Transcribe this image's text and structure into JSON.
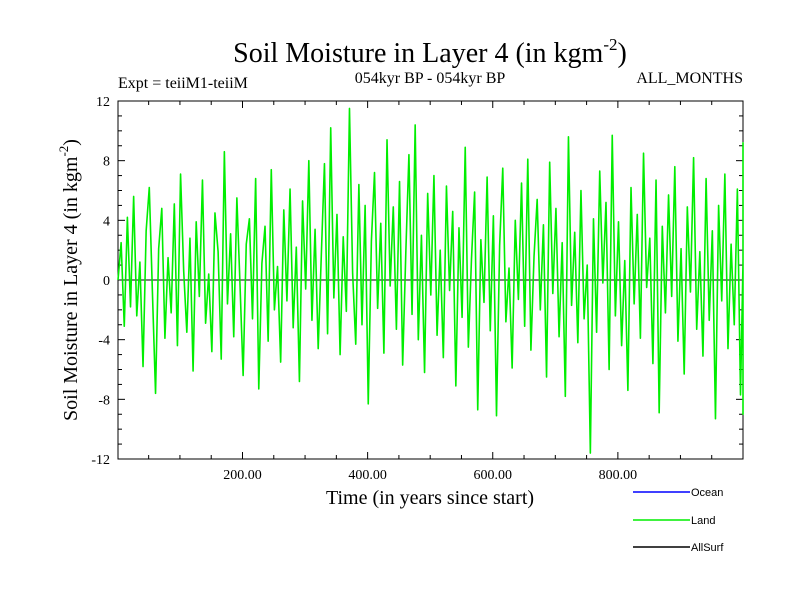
{
  "chart_data": {
    "type": "line",
    "title": "Soil Moisture in Layer 4 (in kgm",
    "title_sup": "-2",
    "title_end": ")",
    "subtitle_left": "Expt = teiiM1-teiiM",
    "subtitle_center": "054kyr BP - 054kyr BP",
    "subtitle_right": "ALL_MONTHS",
    "xlabel": "Time (in years since start)",
    "ylabel": "Soil Moisture in Layer 4 (in kgm",
    "ylabel_sup": "-2",
    "ylabel_end": ")",
    "xlim": [
      1,
      1000
    ],
    "ylim": [
      -12,
      12
    ],
    "x_ticks": [
      200,
      400,
      600,
      800
    ],
    "x_tick_labels": [
      "200.00",
      "400.00",
      "600.00",
      "800.00"
    ],
    "y_ticks": [
      -12,
      -8,
      -4,
      0,
      4,
      8,
      12
    ],
    "y_tick_labels": [
      "-12",
      "-8",
      "-4",
      "0",
      "4",
      "8",
      "12"
    ],
    "legend_position": "bottom-right",
    "colors": {
      "ocean": "#0000ff",
      "land": "#00ee00",
      "allsurf": "#000000"
    },
    "series": [
      {
        "name": "Ocean",
        "color": "#0000ff",
        "values": []
      },
      {
        "name": "Land",
        "color": "#00ee00",
        "x_start": 1,
        "x_step": 5,
        "values": [
          0.0,
          2.5,
          -3.1,
          4.2,
          -1.8,
          5.6,
          -2.4,
          1.2,
          -5.8,
          3.3,
          6.2,
          -0.8,
          -7.6,
          2.1,
          4.8,
          -3.9,
          1.5,
          -2.2,
          5.1,
          -4.4,
          7.1,
          0.6,
          -3.5,
          2.8,
          -6.1,
          3.9,
          -1.1,
          6.7,
          -2.9,
          0.4,
          -4.8,
          4.5,
          1.9,
          -5.3,
          8.6,
          -1.6,
          3.1,
          -3.8,
          5.5,
          -0.3,
          -6.4,
          2.4,
          4.1,
          -2.6,
          6.8,
          -7.3,
          1.1,
          3.6,
          -4.1,
          7.4,
          -2.0,
          0.9,
          -5.5,
          4.7,
          -1.4,
          6.1,
          -3.2,
          2.2,
          -6.8,
          5.3,
          -0.6,
          8.0,
          -2.7,
          3.4,
          -4.6,
          1.7,
          7.8,
          -3.6,
          10.2,
          -1.2,
          4.4,
          -5.0,
          2.9,
          -2.1,
          11.5,
          0.5,
          -4.3,
          6.4,
          -3.0,
          5.0,
          -8.3,
          2.6,
          7.2,
          -1.9,
          3.8,
          -4.9,
          9.4,
          -0.4,
          4.9,
          -3.3,
          6.6,
          -5.7,
          1.8,
          8.4,
          -2.3,
          10.4,
          -4.0,
          3.0,
          -6.2,
          5.8,
          -1.0,
          7.0,
          -3.7,
          2.0,
          -5.2,
          6.3,
          -0.7,
          4.6,
          -7.1,
          3.5,
          -2.5,
          8.9,
          -4.5,
          1.4,
          5.9,
          -8.7,
          2.7,
          -1.5,
          6.9,
          -3.4,
          4.3,
          -9.1,
          2.3,
          7.5,
          -2.8,
          0.8,
          -5.9,
          4.0,
          -1.3,
          6.5,
          -3.1,
          8.1,
          -4.7,
          1.6,
          5.4,
          -2.0,
          3.7,
          -6.5,
          7.9,
          -0.9,
          4.8,
          -3.8,
          2.5,
          -7.8,
          9.6,
          -1.7,
          3.2,
          -4.2,
          6.0,
          -2.6,
          1.0,
          -11.6,
          4.1,
          -3.5,
          7.3,
          -0.2,
          5.2,
          -6.0,
          9.7,
          -2.4,
          3.9,
          -4.4,
          1.3,
          -7.4,
          6.2,
          -1.6,
          4.4,
          -3.9,
          8.5,
          -0.5,
          2.8,
          -5.6,
          6.7,
          -8.9,
          3.6,
          -2.2,
          5.7,
          -1.1,
          7.6,
          -4.1,
          2.1,
          -6.3,
          4.9,
          -0.8,
          8.2,
          -3.3,
          1.9,
          -5.1,
          6.8,
          -2.7,
          3.3,
          -9.3,
          5.0,
          -1.4,
          7.1,
          -4.6,
          2.4,
          -3.0,
          6.1,
          -7.7,
          1.2,
          4.7,
          -2.1,
          8.8,
          -5.4,
          3.0,
          -1.8,
          6.4,
          -3.6,
          2.9,
          -8.1,
          5.6,
          -0.6,
          9.2,
          -4.3,
          3.8,
          -2.5,
          7.0,
          -6.6,
          1.5,
          4.2,
          -3.2,
          8.4,
          -0.9,
          2.6,
          -5.8,
          6.3,
          -1.9,
          4.5,
          -9.0,
          3.4,
          -2.4,
          7.7,
          -4.8,
          1.8,
          5.3,
          -7.2,
          2.0,
          -1.2,
          6.6,
          -3.7,
          4.0,
          -8.6,
          3.1,
          -0.7,
          7.4,
          -2.9,
          5.5,
          -4.0,
          1.1,
          -6.9,
          6.0,
          -2.3,
          3.5,
          -1.5,
          8.3,
          -5.3,
          2.7,
          -3.4,
          5.9,
          -0.4,
          4.6,
          -7.5,
          7.8,
          -1.6,
          3.2,
          -2.8,
          6.9,
          -4.5,
          1.4,
          -3.1,
          5.4,
          -2.0,
          4.3,
          -6.1,
          3.7,
          -0.8,
          5.1,
          -3.6,
          2.2,
          -4.9,
          6.5,
          -1.3,
          4.8,
          -2.2
        ]
      },
      {
        "name": "AllSurf",
        "color": "#000000",
        "values": []
      }
    ]
  }
}
